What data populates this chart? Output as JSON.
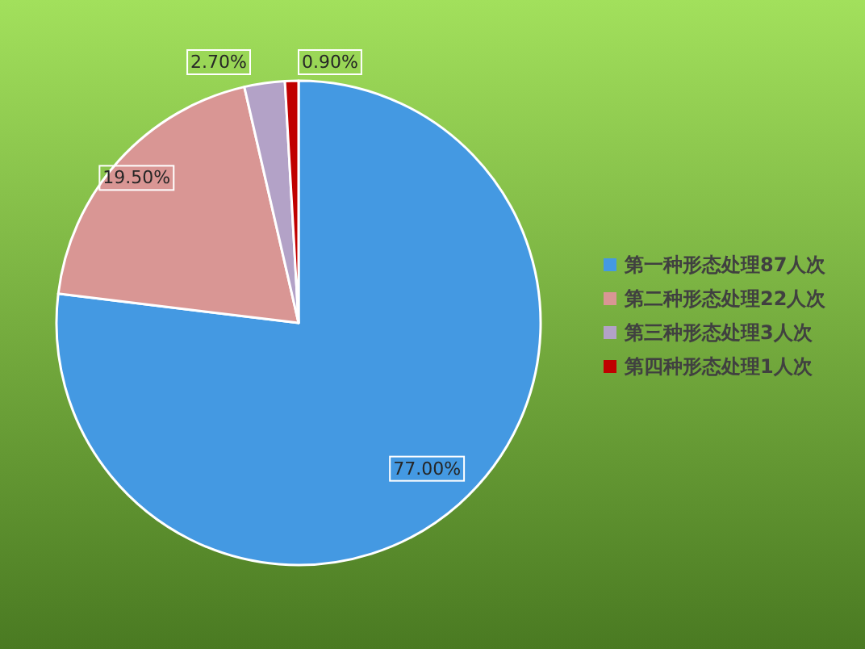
{
  "chart_data": {
    "type": "pie",
    "categories": [
      "第一种形态处理87人次",
      "第二种形态处理22人次",
      "第三种形态处理3人次",
      "第四种形态处理1人次"
    ],
    "values": [
      77.0,
      19.5,
      2.7,
      0.9
    ],
    "colors": [
      "#4499e2",
      "#d99694",
      "#b3a2c7",
      "#c00000"
    ],
    "value_labels": [
      "77.00%",
      "19.50%",
      "2.70%",
      "0.90%"
    ],
    "legend": "right"
  }
}
